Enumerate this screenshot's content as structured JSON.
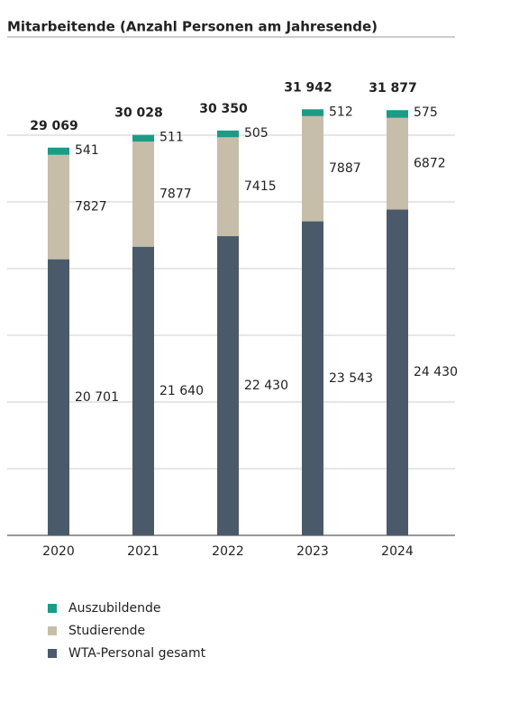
{
  "chart_data": {
    "type": "stacked-bar",
    "title": "Mitarbeitende (Anzahl Personen am Jahresende)",
    "categories": [
      "2020",
      "2021",
      "2022",
      "2023",
      "2024"
    ],
    "series": [
      {
        "name": "WTA-Personal gesamt",
        "color": "#4a5a6b",
        "values": [
          20701,
          21640,
          22430,
          23543,
          24430
        ],
        "value_labels": [
          "20 701",
          "21 640",
          "22 430",
          "23 543",
          "24 430"
        ]
      },
      {
        "name": "Studierende",
        "color": "#c6bea9",
        "values": [
          7827,
          7877,
          7415,
          7887,
          6872
        ]
      },
      {
        "name": "Auszubildende",
        "color": "#1a9c86",
        "values": [
          541,
          511,
          505,
          512,
          575
        ]
      }
    ],
    "totals": [
      29069,
      30028,
      30350,
      31942,
      31877
    ],
    "total_labels": [
      "29 069",
      "30 028",
      "30 350",
      "31 942",
      "31 877"
    ],
    "ylim": [
      0,
      35000
    ],
    "yticks": [
      0,
      5000,
      10000,
      15000,
      20000,
      25000,
      30000
    ],
    "grid": true
  }
}
